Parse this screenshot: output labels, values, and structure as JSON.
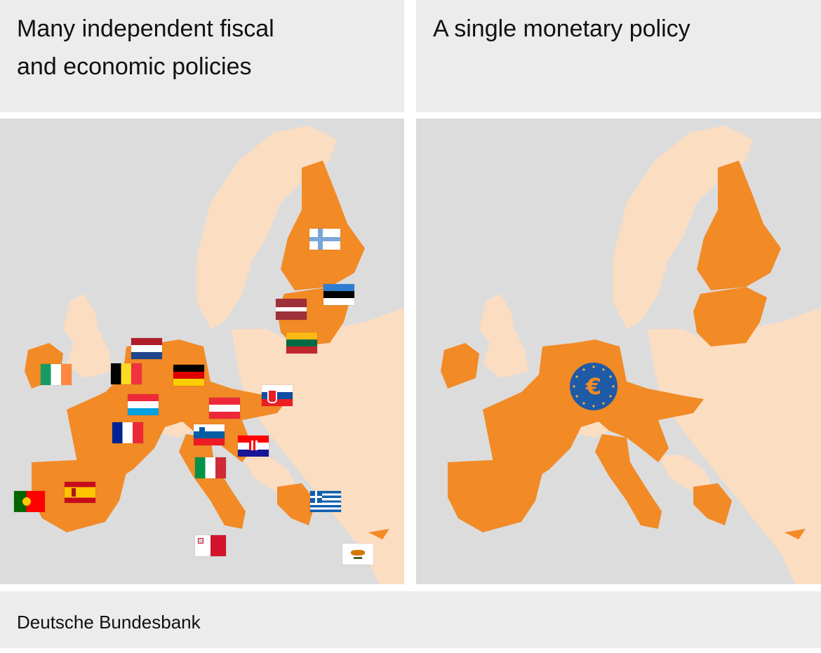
{
  "panels": {
    "left": {
      "title_line1": "Many independent fiscal",
      "title_line2": "and economic policies"
    },
    "right": {
      "title_line1": "A single monetary policy"
    }
  },
  "footer": {
    "source": "Deutsche Bundesbank"
  },
  "colors": {
    "sea": "#dcdcdc",
    "land": "#fbddc2",
    "euro_area": "#f28a26",
    "euro_symbol_bg": "#1f5aa6",
    "euro_symbol_fg": "#f28a26"
  },
  "map": {
    "flags": [
      "finland",
      "estonia",
      "latvia",
      "lithuania",
      "netherlands",
      "belgium",
      "germany",
      "ireland",
      "luxembourg",
      "slovakia",
      "austria",
      "france",
      "slovenia",
      "croatia",
      "italy",
      "spain",
      "portugal",
      "greece",
      "malta",
      "cyprus"
    ],
    "euro_symbol": "euro-ecb-icon"
  }
}
